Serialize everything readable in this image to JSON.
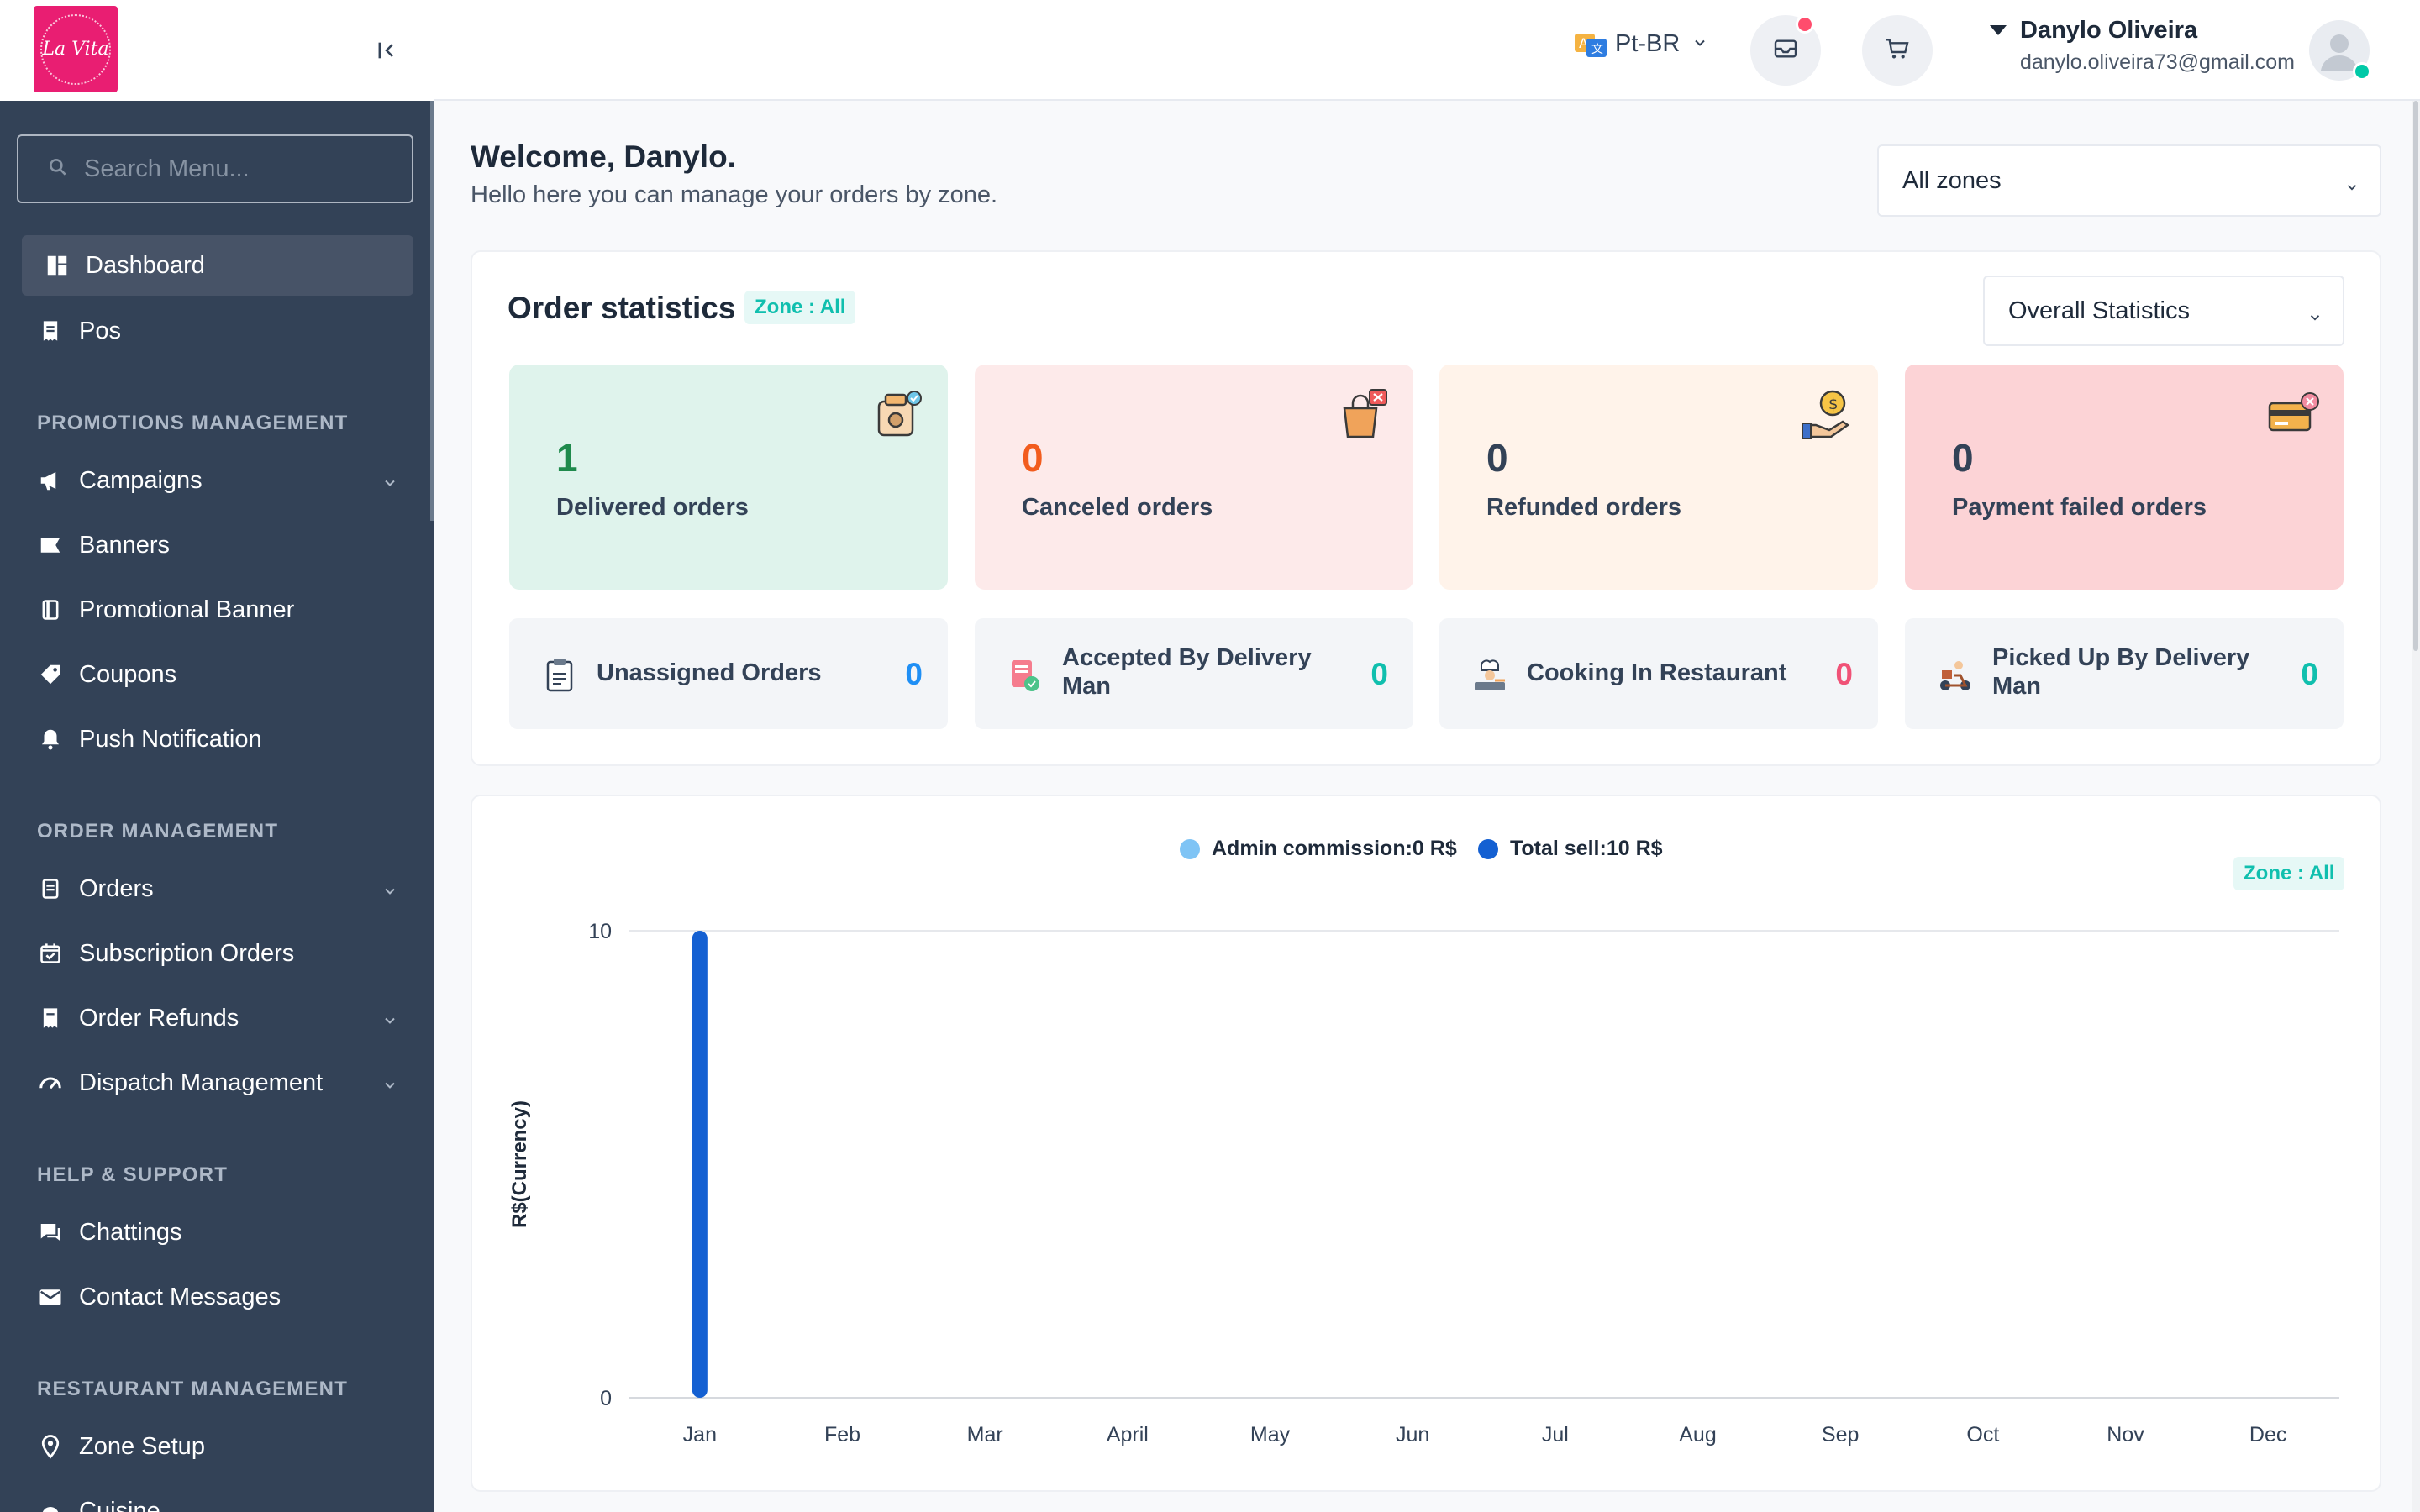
{
  "app": {
    "logo_text": "La Vita"
  },
  "sidebar": {
    "search_placeholder": "Search Menu...",
    "dashboard": "Dashboard",
    "pos": "Pos",
    "sections": {
      "promotions": "PROMOTIONS MANAGEMENT",
      "orders": "ORDER MANAGEMENT",
      "help": "HELP & SUPPORT",
      "restaurant": "RESTAURANT MANAGEMENT"
    },
    "items": {
      "campaigns": "Campaigns",
      "banners": "Banners",
      "promotional_banner": "Promotional Banner",
      "coupons": "Coupons",
      "push_notification": "Push Notification",
      "orders": "Orders",
      "subscription_orders": "Subscription Orders",
      "order_refunds": "Order Refunds",
      "dispatch_management": "Dispatch Management",
      "chattings": "Chattings",
      "contact_messages": "Contact Messages",
      "zone_setup": "Zone Setup",
      "cuisine": "Cuisine"
    }
  },
  "header": {
    "language": "Pt-BR",
    "user_name": "Danylo Oliveira",
    "user_email": "danylo.oliveira73@gmail.com"
  },
  "welcome": {
    "title": "Welcome, Danylo.",
    "subtitle": "Hello here you can manage your orders by zone."
  },
  "zone_select": {
    "value": "All zones"
  },
  "order_stats": {
    "title": "Order statistics",
    "zone_badge": "Zone : All",
    "filter": "Overall Statistics",
    "cards": [
      {
        "value": "1",
        "label": "Delivered orders",
        "color": "#1f8a4c",
        "bg": "#dff3ec"
      },
      {
        "value": "0",
        "label": "Canceled orders",
        "color": "#f25c1e",
        "bg": "#fdeaea"
      },
      {
        "value": "0",
        "label": "Refunded orders",
        "color": "#334257",
        "bg": "#fff3ea"
      },
      {
        "value": "0",
        "label": "Payment failed orders",
        "color": "#334257",
        "bg": "#fcd3d6"
      }
    ],
    "mini": [
      {
        "label": "Unassigned Orders",
        "value": "0",
        "color": "#1f8ff5"
      },
      {
        "label": "Accepted By Delivery Man",
        "value": "0",
        "color": "#10bfae"
      },
      {
        "label": "Cooking In Restaurant",
        "value": "0",
        "color": "#f05277"
      },
      {
        "label": "Picked Up By Delivery Man",
        "value": "0",
        "color": "#10bfae"
      }
    ]
  },
  "chart_data": {
    "type": "bar",
    "categories": [
      "Jan",
      "Feb",
      "Mar",
      "April",
      "May",
      "Jun",
      "Jul",
      "Aug",
      "Sep",
      "Oct",
      "Nov",
      "Dec"
    ],
    "series": [
      {
        "name": "Admin commission:0 R$",
        "values": [
          0,
          0,
          0,
          0,
          0,
          0,
          0,
          0,
          0,
          0,
          0,
          0
        ],
        "color": "#7fc4f5"
      },
      {
        "name": "Total sell:10 R$",
        "values": [
          10,
          0,
          0,
          0,
          0,
          0,
          0,
          0,
          0,
          0,
          0,
          0
        ],
        "color": "#1460d2"
      }
    ],
    "ylabel": "R$(Currency)",
    "ylim": [
      0,
      10
    ],
    "yticks": [
      "0",
      "10"
    ],
    "zone_badge": "Zone : All",
    "legend_position": "top-center",
    "grid": true
  }
}
